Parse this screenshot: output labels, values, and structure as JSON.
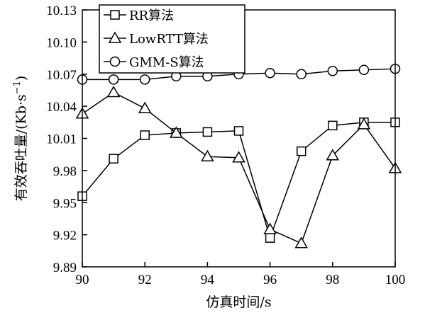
{
  "chart_data": {
    "type": "line",
    "xlabel": "仿真时间/s",
    "ylabel": "有效吞吐量/(Kb·s",
    "ylabel_sup": "−1",
    "ylabel_close": ")",
    "xlim": [
      90,
      100
    ],
    "ylim": [
      9.89,
      10.13
    ],
    "xticks": [
      90,
      92,
      94,
      96,
      98,
      100
    ],
    "xtick_labels": [
      "90",
      "92",
      "94",
      "96",
      "98",
      "100"
    ],
    "yticks": [
      9.89,
      9.92,
      9.95,
      9.98,
      10.01,
      10.04,
      10.07,
      10.1,
      10.13
    ],
    "ytick_labels": [
      "9.89",
      "9.92",
      "9.95",
      "9.98",
      "10.01",
      "10.04",
      "10.07",
      "10.10",
      "10.13"
    ],
    "grid": false,
    "legend_position": "top-left",
    "x": [
      90,
      91,
      92,
      93,
      94,
      95,
      96,
      97,
      98,
      99,
      100
    ],
    "series": [
      {
        "name": "RR算法",
        "marker": "square",
        "values": [
          9.956,
          9.991,
          10.013,
          10.015,
          10.016,
          10.017,
          9.917,
          9.998,
          10.022,
          10.025,
          10.025
        ]
      },
      {
        "name": "LowRTT算法",
        "marker": "triangle",
        "values": [
          10.033,
          10.053,
          10.038,
          10.015,
          9.993,
          9.992,
          9.925,
          9.912,
          9.994,
          10.023,
          9.982
        ]
      },
      {
        "name": "GMM-S算法",
        "marker": "circle",
        "values": [
          10.065,
          10.065,
          10.065,
          10.068,
          10.068,
          10.07,
          10.071,
          10.07,
          10.073,
          10.074,
          10.075
        ]
      }
    ]
  }
}
